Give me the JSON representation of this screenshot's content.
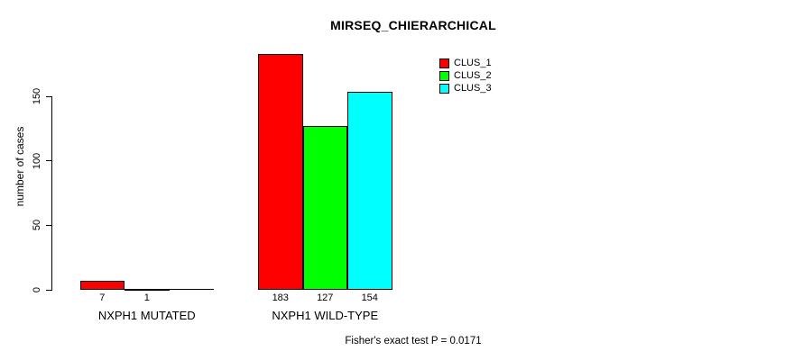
{
  "chart_data": {
    "type": "bar",
    "title": "MIRSEQ_CHIERARCHICAL",
    "ylabel": "number of cases",
    "xlabel": "",
    "categories": [
      "NXPH1 MUTATED",
      "NXPH1 WILD-TYPE"
    ],
    "series": [
      {
        "name": "CLUS_1",
        "color": "#ff0000",
        "values": [
          7,
          183
        ]
      },
      {
        "name": "CLUS_2",
        "color": "#00ff00",
        "values": [
          1,
          127
        ]
      },
      {
        "name": "CLUS_3",
        "color": "#00ffff",
        "values": [
          0,
          154
        ]
      }
    ],
    "bar_value_labels": [
      [
        "7",
        "1",
        ""
      ],
      [
        "183",
        "127",
        "154"
      ]
    ],
    "y_ticks": [
      0,
      50,
      100,
      150
    ],
    "ylim": [
      0,
      187
    ],
    "grid": false,
    "legend_position": "top-right",
    "legend_entries": [
      "CLUS_1",
      "CLUS_2",
      "CLUS_3"
    ],
    "footnote": "Fisher's exact test P = 0.0171",
    "axis_color": "#000000",
    "background_color": "#ffffff"
  }
}
